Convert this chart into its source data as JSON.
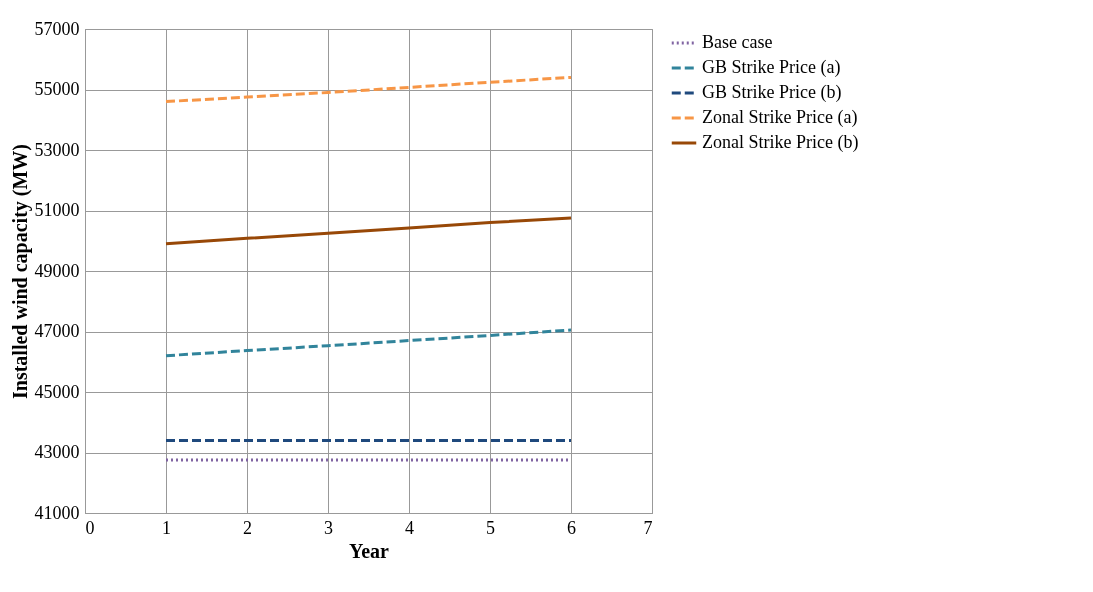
{
  "chart_data": {
    "type": "line",
    "xlabel": "Year",
    "ylabel": "Installed wind capacity (MW)",
    "x": [
      1,
      2,
      3,
      4,
      5,
      6
    ],
    "series": [
      {
        "name": "Base case",
        "color": "#8064a2",
        "line_style": "dotted",
        "values": [
          42750,
          42750,
          42750,
          42750,
          42750,
          42750
        ]
      },
      {
        "name": "GB Strike Price (a)",
        "color": "#31849b",
        "line_style": "dashed",
        "values": [
          46200,
          46370,
          46530,
          46700,
          46870,
          47050
        ]
      },
      {
        "name": "GB Strike Price (b)",
        "color": "#1f497d",
        "line_style": "dashed",
        "values": [
          43400,
          43400,
          43400,
          43400,
          43400,
          43400
        ]
      },
      {
        "name": "Zonal Strike Price (a)",
        "color": "#f79646",
        "line_style": "dashed",
        "values": [
          54600,
          54750,
          54900,
          55070,
          55240,
          55400
        ]
      },
      {
        "name": "Zonal Strike Price (b)",
        "color": "#984807",
        "line_style": "solid",
        "values": [
          49900,
          50080,
          50250,
          50420,
          50600,
          50750
        ]
      }
    ],
    "xlim": [
      0,
      7
    ],
    "xticks": [
      0,
      1,
      2,
      3,
      4,
      5,
      6,
      7
    ],
    "ylim": [
      41000,
      57000
    ],
    "yticks": [
      41000,
      43000,
      45000,
      47000,
      49000,
      51000,
      53000,
      55000,
      57000
    ],
    "grid": true,
    "legend": "right",
    "marker": "none"
  }
}
